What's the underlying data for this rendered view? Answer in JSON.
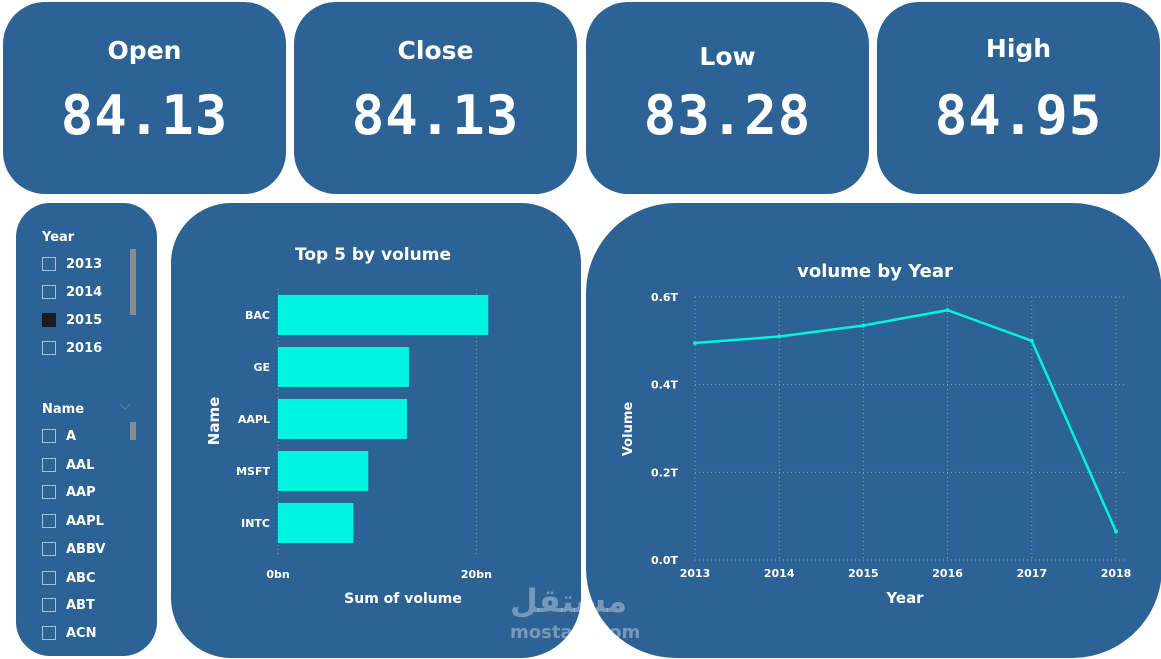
{
  "kpis": [
    {
      "title": "Open",
      "value": "84.13"
    },
    {
      "title": "Close",
      "value": "84.13"
    },
    {
      "title": "Low",
      "value": "83.28"
    },
    {
      "title": "High",
      "value": "84.95"
    }
  ],
  "slicers": {
    "year": {
      "title": "Year",
      "items": [
        {
          "label": "2013",
          "checked": false
        },
        {
          "label": "2014",
          "checked": false
        },
        {
          "label": "2015",
          "checked": true
        },
        {
          "label": "2016",
          "checked": false
        }
      ]
    },
    "name": {
      "title": "Name",
      "items": [
        {
          "label": "A",
          "checked": false
        },
        {
          "label": "AAL",
          "checked": false
        },
        {
          "label": "AAP",
          "checked": false
        },
        {
          "label": "AAPL",
          "checked": false
        },
        {
          "label": "ABBV",
          "checked": false
        },
        {
          "label": "ABC",
          "checked": false
        },
        {
          "label": "ABT",
          "checked": false
        },
        {
          "label": "ACN",
          "checked": false
        }
      ]
    }
  },
  "chart_data": [
    {
      "type": "bar",
      "orientation": "horizontal",
      "title": "Top 5 by volume",
      "xlabel": "Sum of volume",
      "ylabel": "Name",
      "categories": [
        "BAC",
        "GE",
        "AAPL",
        "MSFT",
        "INTC"
      ],
      "values": [
        21.2,
        13.2,
        13.0,
        9.1,
        7.6
      ],
      "value_unit": "bn",
      "xlim": [
        0,
        25
      ],
      "xticks": [
        {
          "value": 0,
          "label": "0bn"
        },
        {
          "value": 20,
          "label": "20bn"
        }
      ],
      "bar_color": "#00f5e0",
      "grid": true
    },
    {
      "type": "line",
      "title": "volume by Year",
      "xlabel": "Year",
      "ylabel": "Volume",
      "x": [
        "2013",
        "2014",
        "2015",
        "2016",
        "2017",
        "2018"
      ],
      "series": [
        {
          "values": [
            0.495,
            0.51,
            0.535,
            0.57,
            0.5,
            0.065
          ]
        }
      ],
      "value_unit": "T",
      "ylim": [
        0,
        0.6
      ],
      "yticks": [
        {
          "value": 0,
          "label": "0.0T"
        },
        {
          "value": 0.2,
          "label": "0.2T"
        },
        {
          "value": 0.4,
          "label": "0.4T"
        },
        {
          "value": 0.6,
          "label": "0.6T"
        }
      ],
      "line_color": "#00f5e0",
      "grid": true
    }
  ],
  "colors": {
    "card": "#2d6295",
    "accent": "#00f5e0",
    "background": "#ffffff"
  },
  "watermark": {
    "text_ar": "مستقل",
    "text_en": "mostaql.com"
  }
}
